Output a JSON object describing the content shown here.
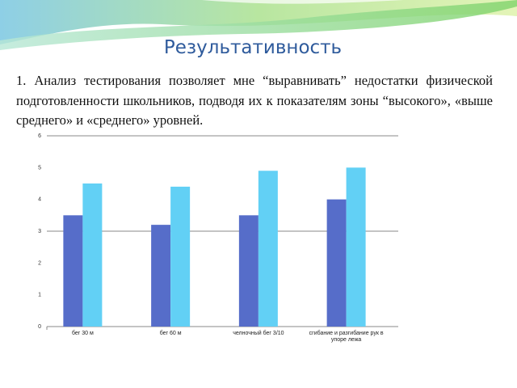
{
  "slide": {
    "title": "Результативность",
    "paragraph": "1. Анализ тестирования позволяет мне “выравнивать” недостатки физической подготовленности школьников, подводя их к показателям зоны “высокого», «выше среднего» и «среднего» уровней."
  },
  "chart_data": {
    "type": "bar",
    "categories": [
      "бег 30 м",
      "бег 60 м",
      "челночный бег 3/10",
      "сгибание и разгибание рук в упоре лежа"
    ],
    "series": [
      {
        "color": "#566dc9",
        "values": [
          3.5,
          3.2,
          3.5,
          4.0
        ]
      },
      {
        "color": "#62d0f5",
        "values": [
          4.5,
          4.4,
          4.9,
          5.0
        ]
      }
    ],
    "ylim": [
      0,
      6
    ],
    "yticks": [
      0,
      1,
      2,
      3,
      4,
      5,
      6
    ],
    "gridlines": [
      0,
      3,
      6
    ]
  }
}
